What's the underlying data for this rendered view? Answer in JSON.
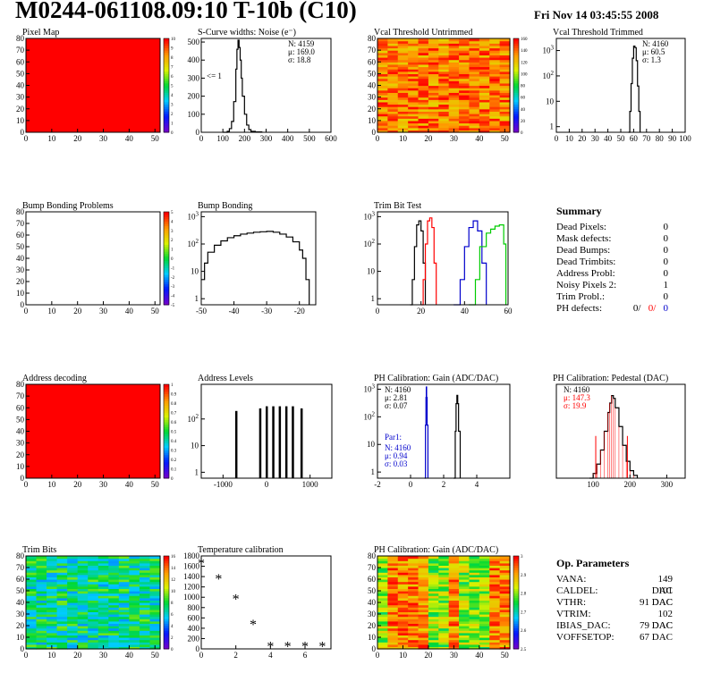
{
  "header": {
    "title": "M0244-061108.09:10 T-10b (C10)",
    "date": "Fri Nov 14 03:45:55 2008"
  },
  "colors": {
    "black": "#000000",
    "red": "#ff0000",
    "green": "#00cc00",
    "blue": "#0000cc",
    "frame": "#000000"
  },
  "chart_data": [
    {
      "type": "heatmap",
      "title": "Pixel Map",
      "xlim": [
        0,
        52
      ],
      "ylim": [
        0,
        80
      ],
      "xticks": [
        0,
        10,
        20,
        30,
        40,
        50
      ],
      "yticks": [
        0,
        10,
        20,
        30,
        40,
        50,
        60,
        70,
        80
      ],
      "fill": "uniform-high",
      "zlim": [
        0,
        10
      ],
      "ztick_labels": [
        "0",
        "1",
        "2",
        "3",
        "4",
        "5",
        "6",
        "7",
        "8",
        "9",
        "10"
      ]
    },
    {
      "type": "line",
      "title": "S-Curve widths: Noise (e⁻)",
      "xlim": [
        0,
        600
      ],
      "ylim": [
        0,
        520
      ],
      "xticks": [
        0,
        100,
        200,
        300,
        400,
        500,
        600
      ],
      "yticks": [
        0,
        100,
        200,
        300,
        400,
        500
      ],
      "stats": [
        "N: 4159",
        "μ: 169.0",
        "σ: 18.8"
      ],
      "annotation": "<= 1",
      "series": [
        {
          "color": "#000000",
          "x": [
            100,
            120,
            130,
            140,
            150,
            160,
            165,
            170,
            175,
            180,
            185,
            190,
            200,
            210,
            220,
            230,
            250,
            280
          ],
          "y": [
            0,
            5,
            20,
            60,
            170,
            350,
            460,
            510,
            470,
            400,
            300,
            200,
            100,
            40,
            15,
            5,
            2,
            0
          ]
        }
      ]
    },
    {
      "type": "heatmap",
      "title": "Vcal Threshold Untrimmed",
      "xlim": [
        0,
        52
      ],
      "ylim": [
        0,
        80
      ],
      "xticks": [
        0,
        10,
        20,
        30,
        40,
        50
      ],
      "yticks": [
        0,
        10,
        20,
        30,
        40,
        50,
        60,
        70,
        80
      ],
      "fill": "noise-warm",
      "zlim": [
        0,
        160
      ],
      "ztick_labels": [
        "0",
        "20",
        "40",
        "60",
        "80",
        "100",
        "120",
        "140",
        "160"
      ]
    },
    {
      "type": "line",
      "title": "Vcal Threshold Trimmed",
      "xlim": [
        0,
        100
      ],
      "ylim": [
        0.6,
        3000
      ],
      "yscale": "log",
      "xticks": [
        0,
        10,
        20,
        30,
        40,
        50,
        60,
        70,
        80,
        90,
        100
      ],
      "yticks": [
        1,
        10,
        100,
        1000
      ],
      "stats": [
        "N: 4160",
        "μ: 60.5",
        "σ:  1.3"
      ],
      "series": [
        {
          "color": "#000000",
          "x": [
            56,
            57,
            58,
            59,
            60,
            61,
            62,
            63,
            64,
            65
          ],
          "y": [
            0.6,
            4,
            50,
            500,
            1500,
            1300,
            400,
            40,
            4,
            0.6
          ]
        }
      ]
    },
    {
      "type": "heatmap",
      "title": "Bump Bonding Problems",
      "xlim": [
        0,
        52
      ],
      "ylim": [
        0,
        80
      ],
      "xticks": [
        0,
        10,
        20,
        30,
        40,
        50
      ],
      "yticks": [
        0,
        10,
        20,
        30,
        40,
        50,
        60,
        70,
        80
      ],
      "fill": "empty",
      "zlim": [
        -5,
        5
      ],
      "ztick_labels": [
        "-5",
        "-4",
        "-3",
        "-2",
        "-1",
        "0",
        "1",
        "2",
        "3",
        "4",
        "5"
      ]
    },
    {
      "type": "line",
      "title": "Bump Bonding",
      "xlim": [
        -50,
        -15
      ],
      "ylim": [
        0.6,
        1500
      ],
      "yscale": "log",
      "xticks": [
        -50,
        -40,
        -30,
        -20
      ],
      "yticks": [
        1,
        10,
        100,
        1000
      ],
      "series": [
        {
          "color": "#000000",
          "x": [
            -50,
            -49,
            -48,
            -46,
            -44,
            -42,
            -40,
            -38,
            -36,
            -34,
            -32,
            -30,
            -28,
            -26,
            -24,
            -22,
            -20,
            -19,
            -18,
            -17
          ],
          "y": [
            5,
            20,
            50,
            90,
            130,
            170,
            200,
            230,
            250,
            270,
            280,
            290,
            270,
            230,
            180,
            120,
            60,
            30,
            5,
            0.6
          ]
        }
      ]
    },
    {
      "type": "line",
      "title": "Trim Bit Test",
      "xlim": [
        0,
        60
      ],
      "ylim": [
        0.6,
        1500
      ],
      "yscale": "log",
      "xticks": [
        0,
        20,
        40,
        60
      ],
      "yticks": [
        1,
        10,
        100,
        1000
      ],
      "series": [
        {
          "color": "#000000",
          "x": [
            15,
            16,
            17,
            18,
            19,
            20,
            21,
            22
          ],
          "y": [
            0.6,
            5,
            80,
            500,
            700,
            300,
            20,
            0.6
          ]
        },
        {
          "color": "#ff0000",
          "x": [
            20,
            21,
            22,
            23,
            24,
            25,
            26,
            27
          ],
          "y": [
            0.6,
            5,
            100,
            700,
            900,
            400,
            20,
            0.6
          ]
        },
        {
          "color": "#0000cc",
          "x": [
            35,
            38,
            40,
            42,
            44,
            46,
            48,
            50
          ],
          "y": [
            0.6,
            5,
            80,
            400,
            700,
            300,
            20,
            0.6
          ]
        },
        {
          "color": "#00cc00",
          "x": [
            42,
            45,
            47,
            50,
            52,
            54,
            56,
            58,
            59
          ],
          "y": [
            0.6,
            5,
            80,
            250,
            350,
            450,
            500,
            100,
            0.6
          ]
        }
      ]
    },
    {
      "type": "heatmap",
      "title": "Address decoding",
      "xlim": [
        0,
        52
      ],
      "ylim": [
        0,
        80
      ],
      "xticks": [
        0,
        10,
        20,
        30,
        40,
        50
      ],
      "yticks": [
        0,
        10,
        20,
        30,
        40,
        50,
        60,
        70,
        80
      ],
      "fill": "uniform-high",
      "zlim": [
        0,
        1
      ],
      "ztick_labels": [
        "0",
        "0.1",
        "0.2",
        "0.3",
        "0.4",
        "0.5",
        "0.6",
        "0.7",
        "0.8",
        "0.9",
        "1"
      ]
    },
    {
      "type": "bar",
      "title": "Address Levels",
      "xlim": [
        -1500,
        1500
      ],
      "ylim": [
        0.6,
        2000
      ],
      "yscale": "log",
      "xticks": [
        -1000,
        0,
        1000
      ],
      "yticks": [
        1,
        10,
        100
      ],
      "spikes": [
        {
          "x": -700,
          "y": 200
        },
        {
          "x": -150,
          "y": 250
        },
        {
          "x": 0,
          "y": 300
        },
        {
          "x": 150,
          "y": 300
        },
        {
          "x": 300,
          "y": 300
        },
        {
          "x": 450,
          "y": 300
        },
        {
          "x": 600,
          "y": 300
        },
        {
          "x": 800,
          "y": 250
        }
      ]
    },
    {
      "type": "line",
      "title": "PH Calibration: Gain (ADC/DAC)",
      "xlim": [
        -2,
        6
      ],
      "ylim": [
        0.6,
        1500
      ],
      "yscale": "log",
      "xticks": [
        -2,
        0,
        2,
        4
      ],
      "yticks": [
        1,
        10,
        100,
        1000
      ],
      "stats": [
        "N: 4160",
        "μ: 2.81",
        "σ: 0.07"
      ],
      "stats2_title": "Par1:",
      "stats2": [
        "N: 4160",
        "μ: 0.94",
        "σ: 0.03"
      ],
      "series": [
        {
          "color": "#000000",
          "x": [
            2.6,
            2.7,
            2.75,
            2.8,
            2.85,
            2.9,
            3.0
          ],
          "y": [
            0.6,
            30,
            300,
            600,
            300,
            30,
            0.6
          ]
        },
        {
          "color": "#0000cc",
          "x": [
            0.85,
            0.9,
            0.93,
            0.95,
            0.97,
            1.0,
            1.05
          ],
          "y": [
            0.6,
            50,
            500,
            1200,
            500,
            50,
            0.6
          ]
        }
      ]
    },
    {
      "type": "line",
      "title": "PH Calibration: Pedestal (DAC)",
      "xlim": [
        0,
        350
      ],
      "ylim": [
        0,
        100
      ],
      "xticks": [
        100,
        200,
        300
      ],
      "stats": [
        "N: 4160",
        "μ: 147.3",
        "σ: 19.9"
      ],
      "series": [
        {
          "color": "#000000",
          "x": [
            90,
            100,
            110,
            120,
            130,
            140,
            145,
            150,
            155,
            160,
            170,
            180,
            190,
            200,
            210,
            220
          ],
          "y": [
            0,
            5,
            15,
            30,
            50,
            70,
            80,
            88,
            85,
            75,
            55,
            35,
            18,
            8,
            3,
            0
          ]
        }
      ],
      "markers": [
        {
          "x": 107
        },
        {
          "x": 193
        }
      ]
    },
    {
      "type": "heatmap",
      "title": "Trim Bits",
      "xlim": [
        0,
        52
      ],
      "ylim": [
        0,
        80
      ],
      "xticks": [
        0,
        10,
        20,
        30,
        40,
        50
      ],
      "yticks": [
        0,
        10,
        20,
        30,
        40,
        50,
        60,
        70,
        80
      ],
      "fill": "noise-green",
      "zlim": [
        0,
        16
      ],
      "ztick_labels": [
        "0",
        "2",
        "4",
        "6",
        "8",
        "10",
        "12",
        "14",
        "16"
      ]
    },
    {
      "type": "scatter",
      "title": "Temperature calibration",
      "xlim": [
        0,
        7.5
      ],
      "ylim": [
        0,
        1800
      ],
      "xticks": [
        0,
        2,
        4,
        6
      ],
      "yticks": [
        0,
        200,
        400,
        600,
        800,
        1000,
        1200,
        1400,
        1600,
        1800
      ],
      "series": [
        {
          "color": "#000000",
          "x": [
            0,
            1,
            2,
            3,
            4,
            5,
            6,
            7
          ],
          "y": [
            1650,
            1350,
            960,
            470,
            40,
            40,
            40,
            40
          ]
        }
      ]
    },
    {
      "type": "heatmap",
      "title": "PH Calibration: Gain (ADC/DAC)",
      "xlim": [
        0,
        52
      ],
      "ylim": [
        0,
        80
      ],
      "xticks": [
        0,
        10,
        20,
        30,
        40,
        50
      ],
      "yticks": [
        0,
        10,
        20,
        30,
        40,
        50,
        60,
        70,
        80
      ],
      "fill": "striped",
      "zlim": [
        2.5,
        3
      ],
      "ztick_labels": [
        "2.5",
        "2.6",
        "2.7",
        "2.8",
        "2.9",
        "3"
      ]
    }
  ],
  "summary": {
    "title": "Summary",
    "rows": [
      {
        "label": "Dead Pixels:",
        "value": "0"
      },
      {
        "label": "Mask defects:",
        "value": "0"
      },
      {
        "label": "Dead Bumps:",
        "value": "0"
      },
      {
        "label": "Dead Trimbits:",
        "value": "0"
      },
      {
        "label": "Address Probl:",
        "value": "0"
      },
      {
        "label": "Noisy Pixels 2:",
        "value": "1"
      },
      {
        "label": "Trim Probl.:",
        "value": "0"
      }
    ],
    "ph_label": "PH defects:",
    "ph_values": [
      {
        "v": "0/",
        "color": "#000000"
      },
      {
        "v": "0/",
        "color": "#ff0000"
      },
      {
        "v": "0",
        "color": "#0000cc"
      }
    ]
  },
  "op_params": {
    "title": "Op. Parameters",
    "rows": [
      {
        "label": "VANA:",
        "value": "149 DAC"
      },
      {
        "label": "CALDEL:",
        "value": "101 DAC"
      },
      {
        "label": "VTHR:",
        "value": "91 DAC"
      },
      {
        "label": "VTRIM:",
        "value": "102 DAC"
      },
      {
        "label": "IBIAS_DAC:",
        "value": "79 DAC"
      },
      {
        "label": "VOFFSETOP:",
        "value": "67 DAC"
      }
    ]
  }
}
